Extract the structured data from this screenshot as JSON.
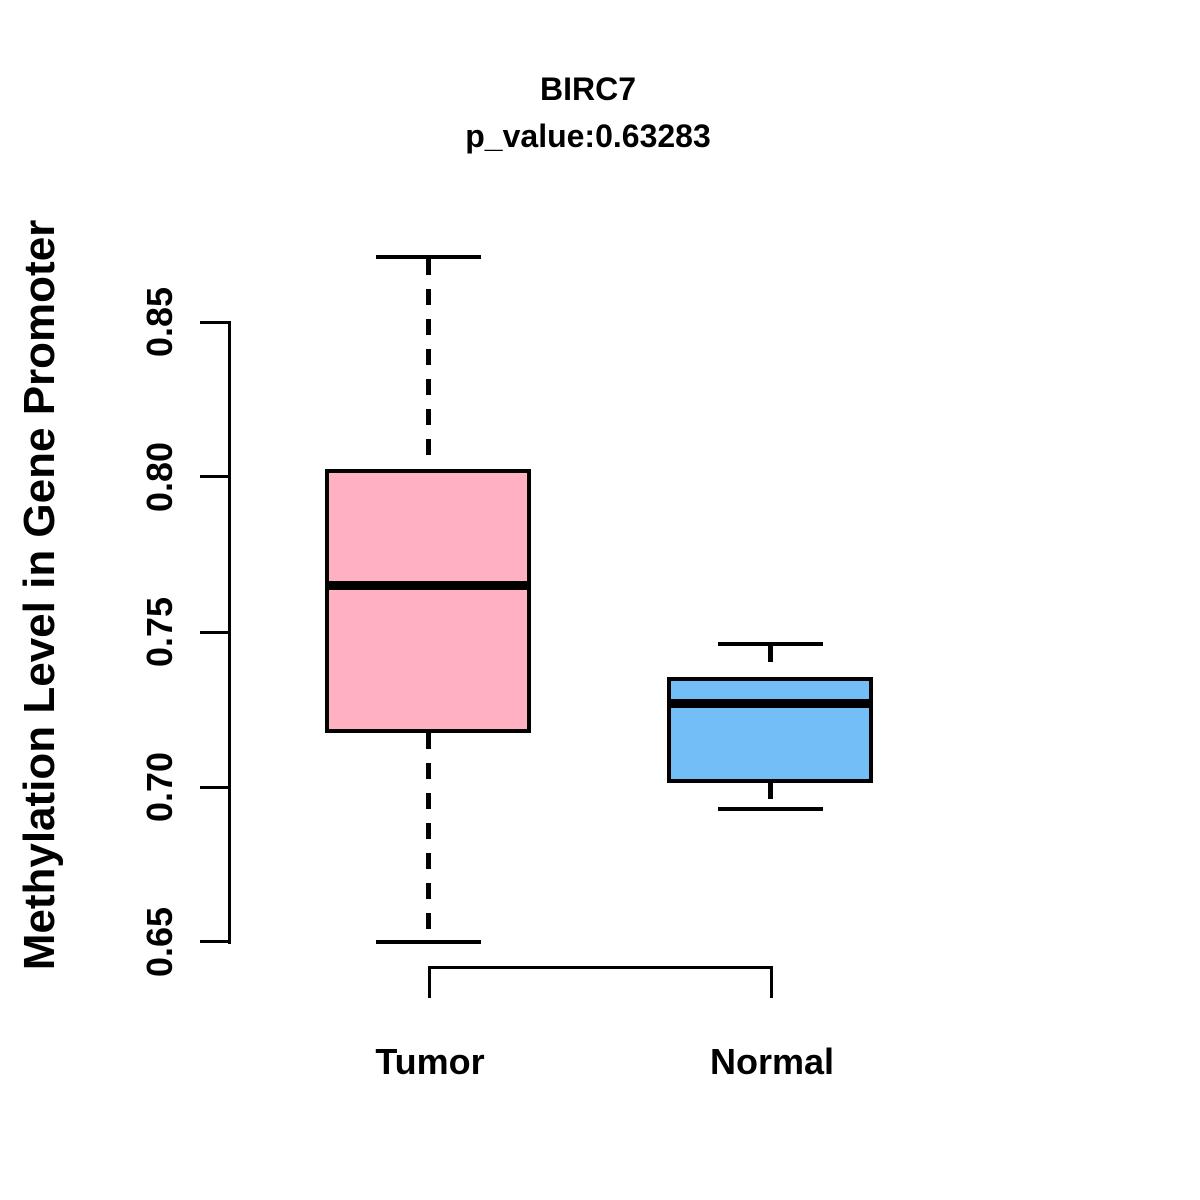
{
  "title": {
    "line1": "BIRC7",
    "line2": "p_value:0.63283"
  },
  "y_axis": {
    "label": "Methylation Level in Gene Promoter",
    "tick_labels": [
      "0.65",
      "0.70",
      "0.75",
      "0.80",
      "0.85"
    ]
  },
  "x_axis": {
    "categories": [
      "Tumor",
      "Normal"
    ]
  },
  "chart_data": {
    "type": "boxplot",
    "title": "BIRC7",
    "subtitle": "p_value:0.63283",
    "xlabel": "",
    "ylabel": "Methylation Level in Gene Promoter",
    "categories": [
      "Tumor",
      "Normal"
    ],
    "yticks": [
      0.65,
      0.7,
      0.75,
      0.8,
      0.85
    ],
    "ylim": [
      0.63,
      0.885
    ],
    "grid": "off",
    "legend": "none",
    "series": [
      {
        "name": "Tumor",
        "whisker_low": 0.65,
        "q1": 0.718,
        "median": 0.765,
        "q3": 0.802,
        "whisker_high": 0.871,
        "fill_color": "#FFB1C1",
        "line_color": "#000000"
      },
      {
        "name": "Normal",
        "whisker_low": 0.693,
        "q1": 0.702,
        "median": 0.727,
        "q3": 0.735,
        "whisker_high": 0.746,
        "fill_color": "#74BEF7",
        "line_color": "#000000"
      }
    ]
  }
}
